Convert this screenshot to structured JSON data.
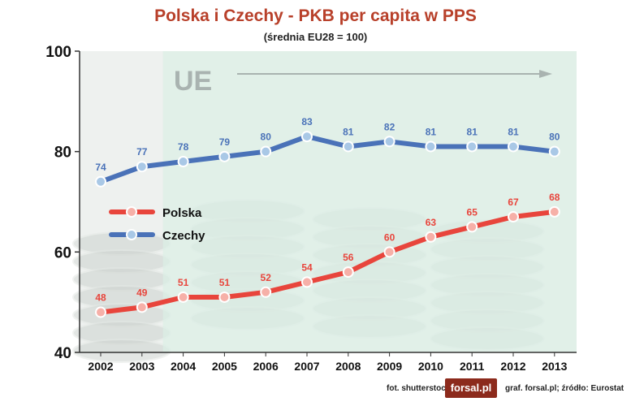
{
  "header": {
    "title": "Polska i Czechy - PKB per capita w PPS",
    "subtitle": "(średnia EU28 = 100)"
  },
  "footer": {
    "photo_credit": "fot. shutterstock",
    "logo_text": "forsal.pl",
    "source": "graf. forsal.pl;  źródło: Eurostat"
  },
  "colors": {
    "polska": "#e8453c",
    "czechy": "#4a72b8",
    "title": "#b8402a",
    "eu_band": "#dcefe6"
  },
  "chart_data": {
    "type": "line",
    "title": "Polska i Czechy - PKB per capita w PPS",
    "subtitle": "(średnia EU28 = 100)",
    "categories": [
      "2002",
      "2003",
      "2004",
      "2005",
      "2006",
      "2007",
      "2008",
      "2009",
      "2010",
      "2011",
      "2012",
      "2013"
    ],
    "yticks": [
      "40",
      "60",
      "80",
      "100"
    ],
    "ylim": [
      40,
      100
    ],
    "grid": false,
    "legend_position": "left-middle",
    "annotation": {
      "text": "UE",
      "start_category": "2004"
    },
    "series": [
      {
        "name": "Polska",
        "values": [
          48,
          49,
          51,
          51,
          52,
          54,
          56,
          60,
          63,
          65,
          67,
          68
        ]
      },
      {
        "name": "Czechy",
        "values": [
          74,
          77,
          78,
          79,
          80,
          83,
          81,
          82,
          81,
          81,
          81,
          80
        ]
      }
    ]
  }
}
